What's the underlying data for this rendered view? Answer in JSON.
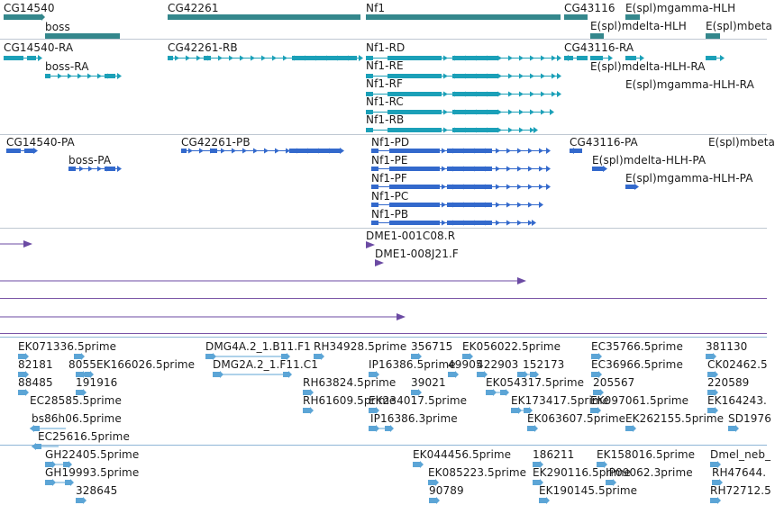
{
  "tracks": {
    "genes": {
      "color": "#34878c",
      "labels": [
        "CG14540",
        "boss",
        "CG42261",
        "Nf1",
        "CG43116",
        "E(spl)mgamma-HLH",
        "E(spl)mdelta-HLH",
        "E(spl)mbeta"
      ]
    },
    "transcripts": {
      "color": "#1ba0b8",
      "labels": [
        "CG14540-RA",
        "boss-RA",
        "CG42261-RB",
        "Nf1-RD",
        "Nf1-RE",
        "Nf1-RF",
        "Nf1-RC",
        "Nf1-RB",
        "CG43116-RA",
        "E(spl)mdelta-HLH-RA",
        "E(spl)mgamma-HLH-RA"
      ]
    },
    "proteins": {
      "color": "#3369cc",
      "labels": [
        "CG14540-PA",
        "boss-PA",
        "CG42261-PB",
        "Nf1-PD",
        "Nf1-PE",
        "Nf1-PF",
        "Nf1-PC",
        "Nf1-PB",
        "CG43116-PA",
        "E(spl)mdelta-HLH-PA",
        "E(spl)mgamma-HLH-PA",
        "E(spl)mbeta"
      ]
    },
    "clones": {
      "color": "#6b4aa3",
      "labels": [
        "DME1-001C08.R",
        "DME1-008J21.F"
      ]
    },
    "ests": {
      "color": "#5ca5d6",
      "labels": [
        "EK071336.5prime",
        "DMG4A.2_1.B11.F1",
        "RH34928.5prime",
        "356715",
        "EK056022.5prime",
        "EC35766.5prime",
        "381130",
        "82181",
        "8055",
        "EK166026.5prime",
        "DMG2A.2_1.F11.C1",
        "IP16386.5prime",
        "49905",
        "422903",
        "152173",
        "EC36966.5prime",
        "CK02462.5",
        "88485",
        "191916",
        "RH63824.5prime",
        "39021",
        "EK054317.5prime",
        "205567",
        "220589",
        "EC28585.5prime",
        "RH61609.5prime",
        "EK234017.5prime",
        "EK173417.5prime",
        "EK097061.5prime",
        "EK164243.",
        "bs86h06.5prime",
        "IP16386.3prime",
        "EK063607.5prime",
        "EK262155.5prime",
        "SD1976",
        "EC25616.5prime"
      ]
    },
    "ests2": {
      "labels": [
        "GH22405.5prime",
        "EK044456.5prime",
        "186211",
        "EK158016.5prime",
        "Dmel_neb_",
        "GH19993.5prime",
        "EK085223.5prime",
        "EK290116.5prime",
        "IP09062.3prime",
        "RH47644.",
        "328645",
        "90789",
        "EK190145.5prime",
        "RH72712.5"
      ]
    }
  }
}
